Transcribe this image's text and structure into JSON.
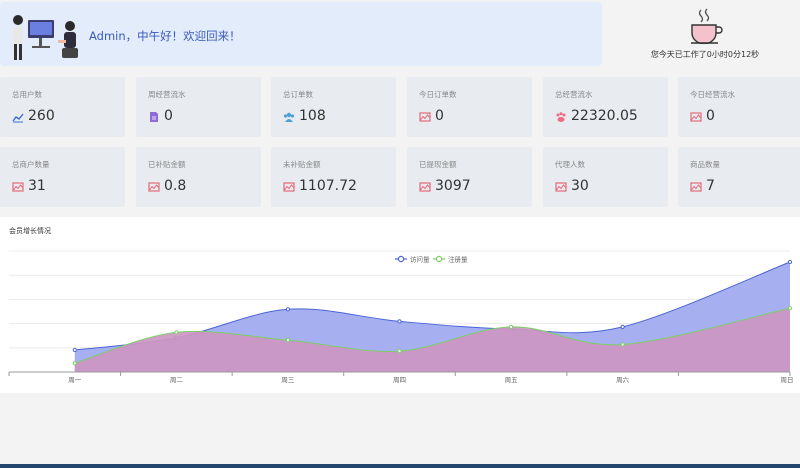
{
  "welcome": {
    "greeting": "Admin，中午好！欢迎回来！"
  },
  "worktime": {
    "text": "您今天已工作了0小时0分12秒"
  },
  "stats_row1": [
    {
      "label": "总用户数",
      "value": "260",
      "icon": "chart-line-icon",
      "color": "#3b6fd6"
    },
    {
      "label": "周经营流水",
      "value": "0",
      "icon": "document-icon",
      "color": "#8e6cd8"
    },
    {
      "label": "总订单数",
      "value": "108",
      "icon": "users-icon",
      "color": "#4ea0d8"
    },
    {
      "label": "今日订单数",
      "value": "0",
      "icon": "broken-image-icon",
      "color": "#e46a78"
    },
    {
      "label": "总经营流水",
      "value": "22320.05",
      "icon": "paw-icon",
      "color": "#f06c80"
    },
    {
      "label": "今日经营流水",
      "value": "0",
      "icon": "broken-image-icon",
      "color": "#e46a78"
    }
  ],
  "stats_row2": [
    {
      "label": "总商户数量",
      "value": "31",
      "icon": "broken-image-icon",
      "color": "#e46a78"
    },
    {
      "label": "已补贴金额",
      "value": "0.8",
      "icon": "broken-image-icon",
      "color": "#e46a78"
    },
    {
      "label": "未补贴金额",
      "value": "1107.72",
      "icon": "broken-image-icon",
      "color": "#e46a78"
    },
    {
      "label": "已提现金额",
      "value": "3097",
      "icon": "broken-image-icon",
      "color": "#e46a78"
    },
    {
      "label": "代理人数",
      "value": "30",
      "icon": "broken-image-icon",
      "color": "#e46a78"
    },
    {
      "label": "商品数量",
      "value": "7",
      "icon": "broken-image-icon",
      "color": "#e46a78"
    }
  ],
  "chart_panel": {
    "title": "会员增长情况"
  },
  "chart_data": {
    "type": "area",
    "categories": [
      "周一",
      "周二",
      "周三",
      "周四",
      "周五",
      "周六",
      "周日"
    ],
    "series": [
      {
        "name": "访问量",
        "values": [
          100,
          155,
          285,
          230,
          195,
          205,
          500
        ],
        "color": "#4b63d8",
        "fill": "#a6b0f0"
      },
      {
        "name": "注册量",
        "values": [
          40,
          180,
          145,
          95,
          205,
          125,
          290
        ],
        "color": "#7ccf66",
        "fill": "#cc96c2"
      }
    ],
    "ylim": [
      0,
      550
    ],
    "legend": "top-center",
    "grid": true
  }
}
